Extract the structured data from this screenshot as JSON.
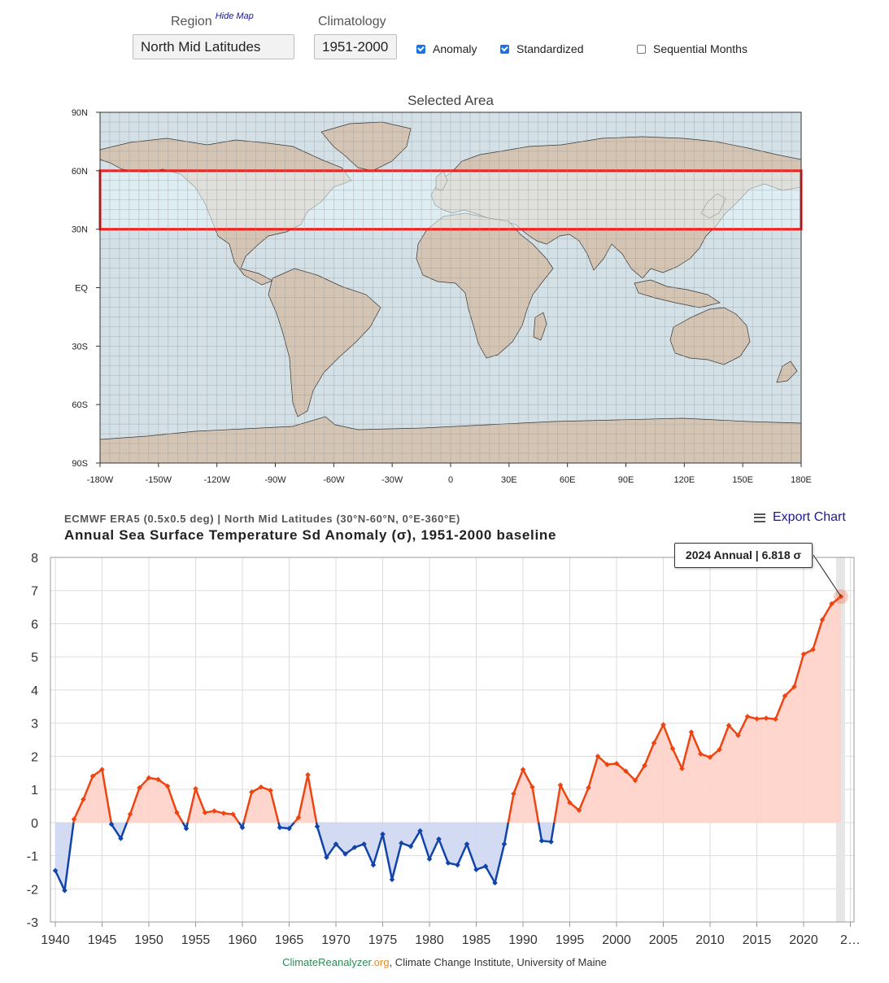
{
  "controls": {
    "region_label": "Region",
    "hide_map_label": "Hide Map",
    "region_value": "North Mid Latitudes",
    "climatology_label": "Climatology",
    "climatology_value": "1951-2000",
    "anomaly_label": "Anomaly",
    "anomaly_checked": true,
    "standardized_label": "Standardized",
    "standardized_checked": true,
    "sequential_label": "Sequential Months",
    "sequential_checked": false
  },
  "map": {
    "title": "Selected Area",
    "lat_ticks": [
      "90N",
      "60N",
      "30N",
      "EQ",
      "30S",
      "60S",
      "90S"
    ],
    "lon_ticks": [
      "-180W",
      "-150W",
      "-120W",
      "-90W",
      "-60W",
      "-30W",
      "0",
      "30E",
      "60E",
      "90E",
      "120E",
      "150E",
      "180E"
    ],
    "selection": {
      "lat_min": 30,
      "lat_max": 60,
      "lon_min": -180,
      "lon_max": 180
    },
    "colors": {
      "ocean": "#d3e0e6",
      "land": "#d4c4b4",
      "selection_fill": "#e8f7fc",
      "selection_border": "#ee1111"
    }
  },
  "chart": {
    "source": "ECMWF ERA5 (0.5x0.5 deg) | North Mid Latitudes (30°N-60°N, 0°E-360°E)",
    "title": "Annual Sea Surface Temperature Sd Anomaly (σ), 1951-2000 baseline",
    "export_label": "Export Chart",
    "tooltip": "2024 Annual | 6.818 σ",
    "x_tick_labels": [
      "1940",
      "1945",
      "1950",
      "1955",
      "1960",
      "1965",
      "1970",
      "1975",
      "1980",
      "1985",
      "1990",
      "1995",
      "2000",
      "2005",
      "2010",
      "2015",
      "2020",
      "2…"
    ],
    "y_tick_labels": [
      "8",
      "7",
      "6",
      "5",
      "4",
      "3",
      "2",
      "1",
      "0",
      "-1",
      "-2",
      "-3"
    ]
  },
  "chart_data": {
    "type": "area",
    "title": "Annual Sea Surface Temperature Sd Anomaly (σ), 1951-2000 baseline",
    "xlabel": "",
    "ylabel": "",
    "xlim": [
      1940,
      2025
    ],
    "ylim": [
      -3,
      8
    ],
    "grid": true,
    "legend": "none",
    "positive_color": "#ee4411",
    "negative_color": "#1144aa",
    "positive_fill": "#ffd2c8",
    "negative_fill": "#cdd7ef",
    "highlight": {
      "x": 2024,
      "y": 6.818
    },
    "x": [
      1940,
      1941,
      1942,
      1943,
      1944,
      1945,
      1946,
      1947,
      1948,
      1949,
      1950,
      1951,
      1952,
      1953,
      1954,
      1955,
      1956,
      1957,
      1958,
      1959,
      1960,
      1961,
      1962,
      1963,
      1964,
      1965,
      1966,
      1967,
      1968,
      1969,
      1970,
      1971,
      1972,
      1973,
      1974,
      1975,
      1976,
      1977,
      1978,
      1979,
      1980,
      1981,
      1982,
      1983,
      1984,
      1985,
      1986,
      1987,
      1988,
      1989,
      1990,
      1991,
      1992,
      1993,
      1994,
      1995,
      1996,
      1997,
      1998,
      1999,
      2000,
      2001,
      2002,
      2003,
      2004,
      2005,
      2006,
      2007,
      2008,
      2009,
      2010,
      2011,
      2012,
      2013,
      2014,
      2015,
      2016,
      2017,
      2018,
      2019,
      2020,
      2021,
      2022,
      2023,
      2024
    ],
    "values": [
      -1.45,
      -2.05,
      0.1,
      0.7,
      1.4,
      1.6,
      -0.05,
      -0.48,
      0.25,
      1.05,
      1.35,
      1.3,
      1.1,
      0.3,
      -0.18,
      1.02,
      0.3,
      0.35,
      0.28,
      0.25,
      -0.15,
      0.92,
      1.07,
      0.97,
      -0.15,
      -0.18,
      0.15,
      1.44,
      -0.12,
      -1.05,
      -0.65,
      -0.95,
      -0.75,
      -0.65,
      -1.28,
      -0.35,
      -1.72,
      -0.62,
      -0.72,
      -0.25,
      -1.1,
      -0.5,
      -1.22,
      -1.28,
      -0.65,
      -1.42,
      -1.32,
      -1.82,
      -0.65,
      0.87,
      1.6,
      1.07,
      -0.55,
      -0.58,
      1.13,
      0.6,
      0.37,
      1.05,
      2.0,
      1.75,
      1.78,
      1.55,
      1.27,
      1.72,
      2.4,
      2.95,
      2.23,
      1.63,
      2.73,
      2.07,
      1.97,
      2.2,
      2.93,
      2.63,
      3.2,
      3.13,
      3.15,
      3.12,
      3.82,
      4.1,
      5.08,
      5.22,
      6.12,
      6.6,
      6.818
    ]
  },
  "credit": {
    "part1": "ClimateReanalyzer",
    "part2": ".org",
    "part3": ", Climate Change Institute, University of Maine"
  }
}
